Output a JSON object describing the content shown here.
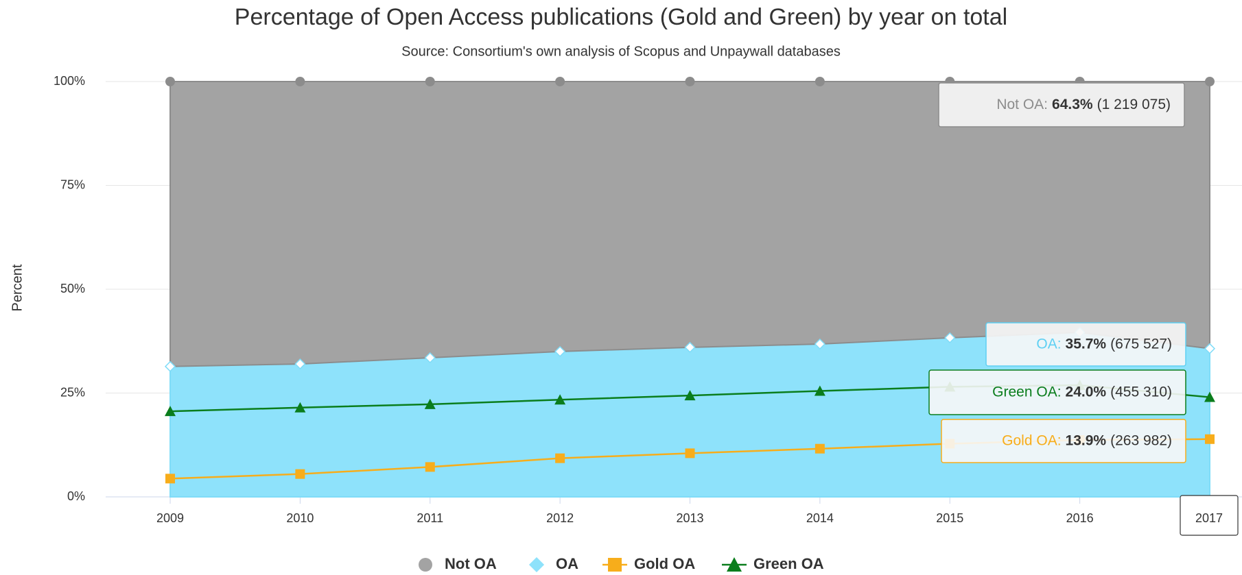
{
  "chart_data": {
    "type": "area",
    "title": "Percentage of Open Access publications (Gold and Green) by year on total",
    "subtitle": "Source: Consortium's own analysis of Scopus and Unpaywall databases",
    "y_label": "Percent",
    "categories": [
      "2009",
      "2010",
      "2011",
      "2012",
      "2013",
      "2014",
      "2015",
      "2016",
      "2017"
    ],
    "ylim": [
      0,
      100
    ],
    "yticks": [
      {
        "value": 0,
        "label": "0%"
      },
      {
        "value": 25,
        "label": "25%"
      },
      {
        "value": 50,
        "label": "50%"
      },
      {
        "value": 75,
        "label": "75%"
      },
      {
        "value": 100,
        "label": "100%"
      }
    ],
    "grid": true,
    "legend": "bottom",
    "series": [
      {
        "name": "Not OA",
        "kind": "stacked-area",
        "marker": "circle",
        "color": "#8c8c8c",
        "fill": "#a3a3a3",
        "values": [
          68.6,
          68.0,
          66.5,
          65.0,
          64.0,
          63.2,
          61.7,
          60.4,
          64.3
        ]
      },
      {
        "name": "OA",
        "kind": "stacked-area",
        "marker": "diamond",
        "color": "#7fdcf8",
        "fill": "#8ee2fb",
        "values": [
          31.4,
          32.0,
          33.5,
          35.0,
          36.0,
          36.8,
          38.3,
          39.6,
          35.7
        ]
      },
      {
        "name": "Gold OA",
        "kind": "line",
        "marker": "square",
        "color": "#f7ad1b",
        "values": [
          4.4,
          5.5,
          7.2,
          9.3,
          10.5,
          11.6,
          12.8,
          13.7,
          13.9
        ]
      },
      {
        "name": "Green OA",
        "kind": "line",
        "marker": "triangle",
        "color": "#0a7d1c",
        "values": [
          20.6,
          21.5,
          22.3,
          23.4,
          24.4,
          25.5,
          26.5,
          26.9,
          24.0
        ]
      }
    ],
    "tooltip": {
      "x_label": "2017",
      "items": [
        {
          "name": "Not OA:",
          "value": "64.3%",
          "count": "(1 219 075)",
          "color": "#8c8c8c"
        },
        {
          "name": "OA:",
          "value": "35.7%",
          "count": "(675 527)",
          "color": "#5fd0f3"
        },
        {
          "name": "Green OA:",
          "value": "24.0%",
          "count": "(455 310)",
          "color": "#0a7d1c"
        },
        {
          "name": "Gold OA:",
          "value": "13.9%",
          "count": "(263 982)",
          "color": "#f7ad1b"
        }
      ]
    }
  }
}
